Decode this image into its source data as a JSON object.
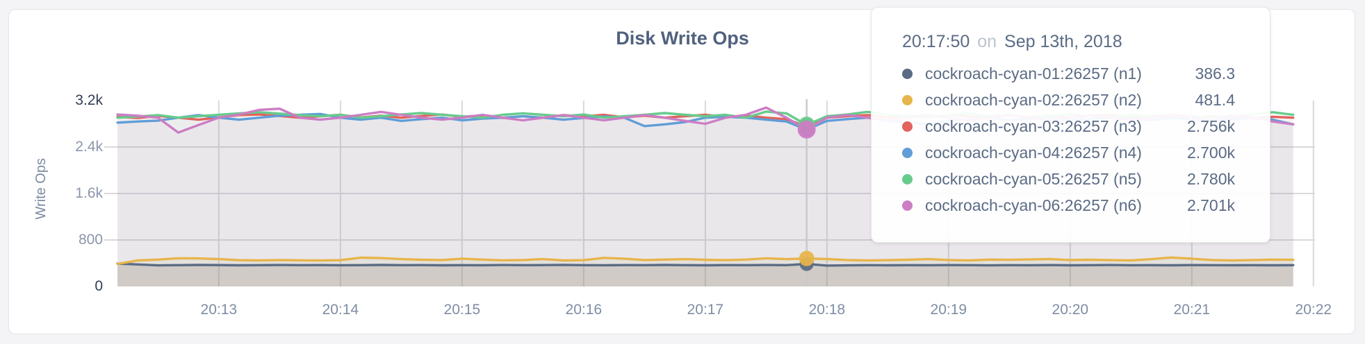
{
  "title": "Disk Write Ops",
  "y_axis_label": "Write Ops",
  "tooltip": {
    "time": "20:17:50",
    "separator": "on",
    "date": "Sep 13th, 2018",
    "rows": [
      {
        "label": "cockroach-cyan-01:26257 (n1)",
        "value": "386.3",
        "color": "#5b6b84"
      },
      {
        "label": "cockroach-cyan-02:26257 (n2)",
        "value": "481.4",
        "color": "#e7b54b"
      },
      {
        "label": "cockroach-cyan-03:26257 (n3)",
        "value": "2.756k",
        "color": "#e2625d"
      },
      {
        "label": "cockroach-cyan-04:26257 (n4)",
        "value": "2.700k",
        "color": "#5f9ed7"
      },
      {
        "label": "cockroach-cyan-05:26257 (n5)",
        "value": "2.780k",
        "color": "#67cb8d"
      },
      {
        "label": "cockroach-cyan-06:26257 (n6)",
        "value": "2.701k",
        "color": "#cc7dc4"
      }
    ]
  },
  "colors": {
    "page_background": "#f4f4f6",
    "card_background": "#ffffff",
    "grid_line": "#d9d9dc",
    "hover_line": "#c9c9cd",
    "axis_tick": "#8b96aa",
    "axis_tick_strong": "#333f54",
    "x_axis_tick": "#7f8da3",
    "title_text": "#51617e"
  },
  "chart_data": {
    "type": "line",
    "title": "Disk Write Ops",
    "xlabel": "",
    "ylabel": "Write Ops",
    "ylim": [
      0,
      3200
    ],
    "grid": true,
    "x_start_time": "20:12:10",
    "x_step_seconds": 10,
    "hover_time": "20:17:50",
    "hover_index": 34,
    "y_ticks": [
      {
        "label": "0",
        "v": 0,
        "strong": true
      },
      {
        "label": "800",
        "v": 800,
        "strong": false
      },
      {
        "label": "1.6k",
        "v": 1600,
        "strong": false
      },
      {
        "label": "2.4k",
        "v": 2400,
        "strong": false
      },
      {
        "label": "3.2k",
        "v": 3200,
        "strong": true
      }
    ],
    "x_ticks": [
      {
        "label": "20:13",
        "t": 50
      },
      {
        "label": "20:14",
        "t": 110
      },
      {
        "label": "20:15",
        "t": 170
      },
      {
        "label": "20:16",
        "t": 230
      },
      {
        "label": "20:17",
        "t": 290
      },
      {
        "label": "20:18",
        "t": 350
      },
      {
        "label": "20:19",
        "t": 410
      },
      {
        "label": "20:20",
        "t": 470
      },
      {
        "label": "20:21",
        "t": 530
      },
      {
        "label": "20:22",
        "t": 590
      }
    ],
    "series": [
      {
        "name": "cockroach-cyan-01:26257 (n1)",
        "color": "#5b6b84",
        "fill": "rgba(120,115,90,0.20)",
        "dot_r": 10,
        "values": [
          393,
          378,
          363,
          366,
          370,
          368,
          364,
          367,
          369,
          366,
          368,
          365,
          367,
          370,
          366,
          368,
          364,
          367,
          365,
          369,
          366,
          368,
          371,
          367,
          365,
          368,
          366,
          370,
          367,
          364,
          368,
          366,
          369,
          367,
          386.3,
          360,
          363,
          366,
          364,
          367,
          365,
          368,
          366,
          363,
          367,
          365,
          368,
          364,
          366,
          369,
          365,
          367,
          364,
          368,
          366,
          365,
          367,
          364,
          366
        ]
      },
      {
        "name": "cockroach-cyan-02:26257 (n2)",
        "color": "#e7b54b",
        "fill": "rgba(201,163,74,0.10)",
        "dot_r": 11,
        "values": [
          388,
          448,
          462,
          486,
          482,
          470,
          452,
          448,
          455,
          450,
          446,
          452,
          495,
          488,
          470,
          460,
          455,
          478,
          462,
          450,
          455,
          470,
          448,
          452,
          492,
          478,
          455,
          462,
          470,
          458,
          452,
          462,
          485,
          470,
          481.4,
          472,
          455,
          448,
          452,
          460,
          470,
          455,
          448,
          462,
          458,
          465,
          472,
          455,
          460,
          452,
          448,
          470,
          498,
          478,
          455,
          448,
          455,
          462,
          458
        ]
      },
      {
        "name": "cockroach-cyan-03:26257 (n3)",
        "color": "#e2625d",
        "fill": "rgba(226,98,93,0.055)",
        "dot_r": 11,
        "values": [
          2920,
          2900,
          2935,
          2905,
          2870,
          2910,
          2950,
          2960,
          2935,
          2905,
          2930,
          2955,
          2910,
          2940,
          2905,
          2935,
          2960,
          2920,
          2945,
          2900,
          2930,
          2905,
          2950,
          2925,
          2955,
          2910,
          2940,
          2905,
          2930,
          2955,
          2915,
          2945,
          2905,
          2880,
          2756,
          2905,
          2930,
          2950,
          2910,
          2940,
          2905,
          2955,
          2925,
          2900,
          2945,
          2915,
          2940,
          2905,
          2935,
          2955,
          2910,
          2940,
          2920,
          2900,
          2935,
          2910,
          2895,
          2920,
          2905
        ]
      },
      {
        "name": "cockroach-cyan-04:26257 (n4)",
        "color": "#5f9ed7",
        "fill": "rgba(95,158,215,0.055)",
        "dot_r": 10,
        "values": [
          2820,
          2840,
          2855,
          2905,
          2950,
          2905,
          2870,
          2905,
          2940,
          2955,
          2970,
          2905,
          2870,
          2905,
          2850,
          2880,
          2905,
          2860,
          2890,
          2905,
          2930,
          2905,
          2870,
          2900,
          2925,
          2905,
          2760,
          2790,
          2830,
          2905,
          2920,
          2905,
          2870,
          2840,
          2700,
          2850,
          2880,
          2905,
          2850,
          2820,
          2790,
          2850,
          2880,
          2905,
          2860,
          2890,
          2905,
          2860,
          2880,
          2905,
          2890,
          2860,
          2905,
          2880,
          2850,
          2880,
          2905,
          2870,
          2790
        ]
      },
      {
        "name": "cockroach-cyan-05:26257 (n5)",
        "color": "#67cb8d",
        "fill": "rgba(103,203,141,0.055)",
        "dot_r": 12,
        "values": [
          2905,
          2925,
          2950,
          2905,
          2930,
          2955,
          2980,
          3000,
          2975,
          2950,
          2930,
          2955,
          2905,
          2930,
          2960,
          2985,
          2955,
          2930,
          2905,
          2955,
          2980,
          2955,
          2930,
          2960,
          2905,
          2930,
          2955,
          2985,
          2955,
          2930,
          2955,
          2905,
          3010,
          2980,
          2780,
          2930,
          2960,
          3005,
          2955,
          2930,
          2905,
          2955,
          2980,
          2930,
          2955,
          2905,
          2930,
          2960,
          2930,
          2905,
          2955,
          2930,
          2960,
          2930,
          2905,
          2930,
          2960,
          3000,
          2955
        ]
      },
      {
        "name": "cockroach-cyan-06:26257 (n6)",
        "color": "#cc7dc4",
        "fill": "rgba(204,125,196,0.055)",
        "dot_r": 13,
        "values": [
          2960,
          2940,
          2905,
          2650,
          2780,
          2905,
          2960,
          3040,
          3060,
          2905,
          2870,
          2905,
          2955,
          3005,
          2955,
          2905,
          2870,
          2905,
          2955,
          2905,
          2860,
          2905,
          2950,
          2905,
          2860,
          2905,
          2950,
          2905,
          2850,
          2800,
          2905,
          2955,
          3080,
          2905,
          2701,
          2905,
          2950,
          2905,
          2860,
          2905,
          2950,
          2905,
          2860,
          2905,
          2950,
          2905,
          2860,
          2905,
          2950,
          2905,
          2860,
          2905,
          2950,
          2905,
          2860,
          2950,
          2905,
          2840,
          2790
        ]
      }
    ]
  }
}
